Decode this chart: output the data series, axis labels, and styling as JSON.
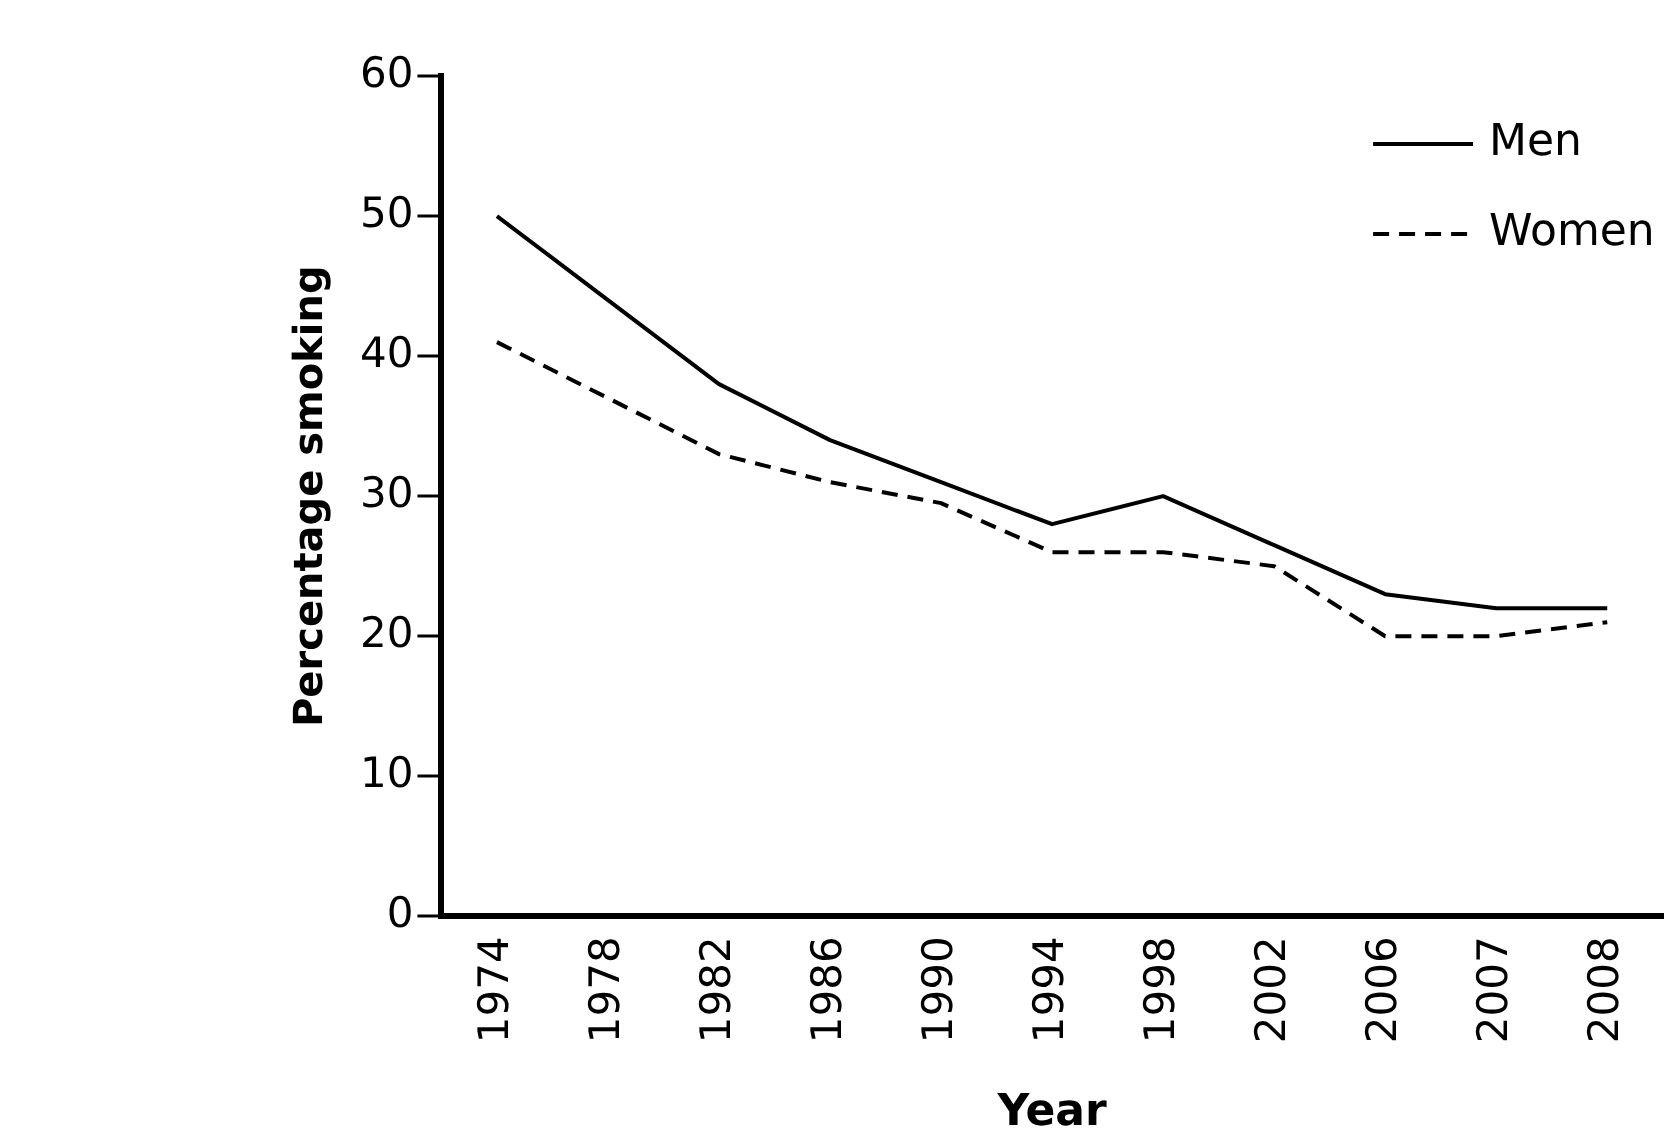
{
  "chart_data": {
    "type": "line",
    "xlabel": "Year",
    "ylabel": "Percentage smoking",
    "categories": [
      "1974",
      "1978",
      "1982",
      "1986",
      "1990",
      "1994",
      "1998",
      "2002",
      "2006",
      "2007",
      "2008"
    ],
    "series": [
      {
        "name": "Men",
        "color": "#000000",
        "line_style": "solid",
        "values": [
          50,
          44,
          38,
          34,
          31,
          28,
          30,
          26.5,
          23,
          22,
          22
        ]
      },
      {
        "name": "Women",
        "color": "#000000",
        "line_style": "dashed",
        "values": [
          41,
          37,
          33,
          31,
          29.5,
          26,
          26,
          25,
          20,
          20,
          21
        ]
      }
    ],
    "ylim": [
      0,
      60
    ],
    "yticks": [
      0,
      10,
      20,
      30,
      40,
      50,
      60
    ],
    "grid": false,
    "legend": "top right",
    "marker": "none"
  }
}
